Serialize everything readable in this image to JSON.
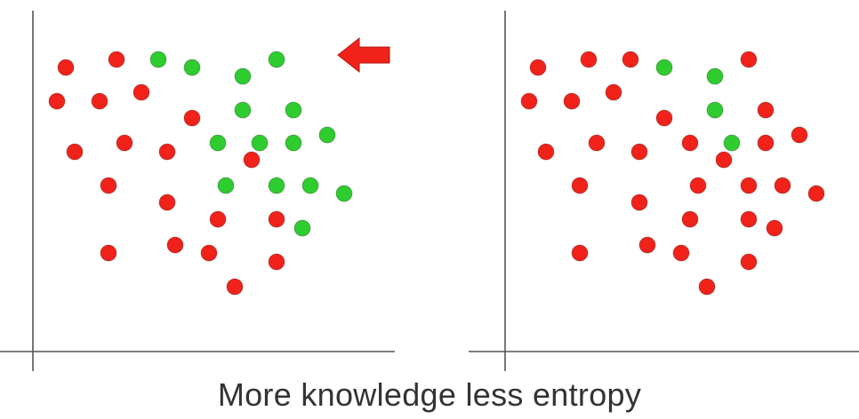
{
  "caption": "More knowledge less entropy",
  "colors": {
    "red": "#f0221a",
    "green": "#2ecc2e",
    "arrow": "#f0221a",
    "axis": "#555555"
  },
  "panels": [
    {
      "name": "left-panel",
      "has_arrow": true,
      "points": [
        [
          "r",
          74,
          76
        ],
        [
          "r",
          131,
          67
        ],
        [
          "g",
          178,
          67
        ],
        [
          "g",
          216,
          76
        ],
        [
          "g",
          273,
          86
        ],
        [
          "g",
          311,
          67
        ],
        [
          "r",
          64,
          114
        ],
        [
          "r",
          112,
          114
        ],
        [
          "r",
          159,
          104
        ],
        [
          "r",
          216,
          133
        ],
        [
          "g",
          273,
          124
        ],
        [
          "g",
          330,
          124
        ],
        [
          "r",
          84,
          171
        ],
        [
          "r",
          140,
          161
        ],
        [
          "r",
          188,
          171
        ],
        [
          "g",
          245,
          161
        ],
        [
          "g",
          292,
          161
        ],
        [
          "g",
          330,
          161
        ],
        [
          "g",
          368,
          152
        ],
        [
          "r",
          283,
          180
        ],
        [
          "r",
          122,
          209
        ],
        [
          "g",
          254,
          209
        ],
        [
          "g",
          311,
          209
        ],
        [
          "g",
          349,
          209
        ],
        [
          "g",
          387,
          218
        ],
        [
          "r",
          188,
          228
        ],
        [
          "r",
          245,
          247
        ],
        [
          "r",
          311,
          247
        ],
        [
          "g",
          340,
          257
        ],
        [
          "r",
          122,
          285
        ],
        [
          "r",
          197,
          276
        ],
        [
          "r",
          235,
          285
        ],
        [
          "r",
          311,
          295
        ],
        [
          "r",
          264,
          323
        ]
      ]
    },
    {
      "name": "right-panel",
      "has_arrow": false,
      "points": [
        [
          "r",
          605,
          76
        ],
        [
          "r",
          662,
          67
        ],
        [
          "r",
          709,
          67
        ],
        [
          "g",
          747,
          76
        ],
        [
          "g",
          804,
          86
        ],
        [
          "r",
          842,
          67
        ],
        [
          "r",
          595,
          114
        ],
        [
          "r",
          643,
          114
        ],
        [
          "r",
          690,
          104
        ],
        [
          "r",
          747,
          133
        ],
        [
          "g",
          804,
          124
        ],
        [
          "r",
          861,
          124
        ],
        [
          "r",
          614,
          171
        ],
        [
          "r",
          671,
          161
        ],
        [
          "r",
          719,
          171
        ],
        [
          "r",
          776,
          161
        ],
        [
          "g",
          823,
          161
        ],
        [
          "r",
          861,
          161
        ],
        [
          "r",
          899,
          152
        ],
        [
          "r",
          814,
          180
        ],
        [
          "r",
          652,
          209
        ],
        [
          "r",
          785,
          209
        ],
        [
          "r",
          842,
          209
        ],
        [
          "r",
          880,
          209
        ],
        [
          "r",
          918,
          218
        ],
        [
          "r",
          719,
          228
        ],
        [
          "r",
          776,
          247
        ],
        [
          "r",
          842,
          247
        ],
        [
          "r",
          871,
          257
        ],
        [
          "r",
          652,
          285
        ],
        [
          "r",
          728,
          276
        ],
        [
          "r",
          766,
          285
        ],
        [
          "r",
          842,
          295
        ],
        [
          "r",
          795,
          323
        ]
      ]
    }
  ]
}
